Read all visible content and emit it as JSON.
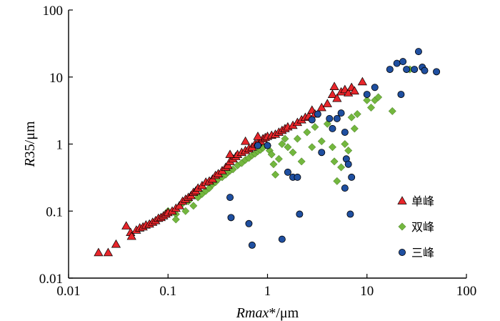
{
  "chart_data": {
    "type": "scatter",
    "xscale": "log",
    "yscale": "log",
    "xlim": [
      0.01,
      100
    ],
    "ylim": [
      0.01,
      100
    ],
    "x_ticks": [
      "0.01",
      "0.1",
      "1",
      "10",
      "100"
    ],
    "y_ticks": [
      "0.01",
      "0.1",
      "1",
      "10",
      "100"
    ],
    "xlabel": {
      "italic": "Rmax",
      "rest": "*/μm"
    },
    "ylabel": {
      "italic": "R",
      "rest": "35/μm"
    },
    "grid": false,
    "legend_position": "right",
    "series": [
      {
        "name": "单峰",
        "marker": "triangle",
        "color": "#e8262b",
        "points": [
          [
            0.02,
            0.024
          ],
          [
            0.025,
            0.024
          ],
          [
            0.03,
            0.032
          ],
          [
            0.038,
            0.06
          ],
          [
            0.042,
            0.048
          ],
          [
            0.043,
            0.042
          ],
          [
            0.048,
            0.052
          ],
          [
            0.052,
            0.056
          ],
          [
            0.056,
            0.058
          ],
          [
            0.06,
            0.062
          ],
          [
            0.065,
            0.064
          ],
          [
            0.07,
            0.068
          ],
          [
            0.075,
            0.072
          ],
          [
            0.08,
            0.078
          ],
          [
            0.085,
            0.08
          ],
          [
            0.09,
            0.085
          ],
          [
            0.095,
            0.09
          ],
          [
            0.1,
            0.095
          ],
          [
            0.11,
            0.1
          ],
          [
            0.12,
            0.11
          ],
          [
            0.13,
            0.12
          ],
          [
            0.14,
            0.14
          ],
          [
            0.15,
            0.15
          ],
          [
            0.16,
            0.16
          ],
          [
            0.17,
            0.17
          ],
          [
            0.18,
            0.19
          ],
          [
            0.19,
            0.2
          ],
          [
            0.2,
            0.22
          ],
          [
            0.22,
            0.24
          ],
          [
            0.24,
            0.27
          ],
          [
            0.26,
            0.28
          ],
          [
            0.28,
            0.3
          ],
          [
            0.3,
            0.34
          ],
          [
            0.32,
            0.36
          ],
          [
            0.35,
            0.4
          ],
          [
            0.38,
            0.45
          ],
          [
            0.4,
            0.48
          ],
          [
            0.42,
            0.55
          ],
          [
            0.45,
            0.6
          ],
          [
            0.48,
            0.65
          ],
          [
            0.5,
            0.7
          ],
          [
            0.55,
            0.75
          ],
          [
            0.6,
            0.8
          ],
          [
            0.65,
            0.85
          ],
          [
            0.7,
            0.9
          ],
          [
            0.75,
            1.0
          ],
          [
            0.8,
            1.05
          ],
          [
            0.85,
            1.1
          ],
          [
            0.9,
            1.2
          ],
          [
            0.95,
            1.25
          ],
          [
            1.0,
            1.3
          ],
          [
            1.1,
            1.35
          ],
          [
            1.2,
            1.4
          ],
          [
            1.3,
            1.5
          ],
          [
            1.4,
            1.6
          ],
          [
            1.5,
            1.7
          ],
          [
            1.6,
            1.8
          ],
          [
            1.8,
            1.9
          ],
          [
            2.0,
            2.1
          ],
          [
            2.2,
            2.3
          ],
          [
            2.4,
            2.5
          ],
          [
            2.6,
            2.6
          ],
          [
            2.8,
            3.2
          ],
          [
            3.0,
            2.8
          ],
          [
            3.5,
            3.5
          ],
          [
            4.0,
            4.0
          ],
          [
            4.5,
            5.5
          ],
          [
            4.7,
            7.2
          ],
          [
            5.0,
            4.8
          ],
          [
            5.5,
            6.0
          ],
          [
            6.0,
            6.5
          ],
          [
            6.5,
            5.8
          ],
          [
            7.0,
            7.0
          ],
          [
            7.5,
            6.2
          ],
          [
            9.0,
            8.5
          ],
          [
            0.42,
            0.7
          ],
          [
            0.6,
            1.1
          ],
          [
            0.8,
            1.3
          ]
        ]
      },
      {
        "name": "双峰",
        "marker": "diamond",
        "color": "#73b73e",
        "points": [
          [
            0.1,
            0.1
          ],
          [
            0.12,
            0.09
          ],
          [
            0.12,
            0.075
          ],
          [
            0.14,
            0.13
          ],
          [
            0.15,
            0.1
          ],
          [
            0.16,
            0.14
          ],
          [
            0.18,
            0.12
          ],
          [
            0.2,
            0.16
          ],
          [
            0.22,
            0.18
          ],
          [
            0.24,
            0.2
          ],
          [
            0.26,
            0.22
          ],
          [
            0.28,
            0.25
          ],
          [
            0.3,
            0.27
          ],
          [
            0.32,
            0.3
          ],
          [
            0.35,
            0.32
          ],
          [
            0.38,
            0.35
          ],
          [
            0.4,
            0.38
          ],
          [
            0.42,
            0.4
          ],
          [
            0.45,
            0.42
          ],
          [
            0.5,
            0.48
          ],
          [
            0.55,
            0.52
          ],
          [
            0.6,
            0.58
          ],
          [
            0.65,
            0.62
          ],
          [
            0.7,
            0.68
          ],
          [
            0.75,
            0.72
          ],
          [
            0.8,
            0.78
          ],
          [
            0.85,
            0.82
          ],
          [
            0.9,
            0.88
          ],
          [
            1.0,
            0.95
          ],
          [
            1.05,
            0.8
          ],
          [
            1.1,
            0.7
          ],
          [
            1.15,
            0.5
          ],
          [
            1.2,
            0.35
          ],
          [
            1.3,
            0.6
          ],
          [
            1.4,
            1.0
          ],
          [
            1.5,
            1.2
          ],
          [
            1.6,
            0.9
          ],
          [
            1.8,
            0.75
          ],
          [
            2.0,
            1.2
          ],
          [
            2.2,
            0.55
          ],
          [
            2.5,
            1.5
          ],
          [
            2.8,
            0.9
          ],
          [
            3.0,
            1.8
          ],
          [
            3.5,
            1.1
          ],
          [
            4.0,
            2.0
          ],
          [
            4.5,
            0.9
          ],
          [
            4.7,
            0.55
          ],
          [
            5.0,
            0.28
          ],
          [
            5.5,
            0.45
          ],
          [
            6.0,
            1.0
          ],
          [
            6.5,
            0.8
          ],
          [
            7.0,
            2.5
          ],
          [
            7.5,
            1.7
          ],
          [
            8.0,
            2.8
          ],
          [
            10.0,
            4.5
          ],
          [
            11.0,
            3.5
          ],
          [
            12.0,
            4.5
          ],
          [
            13.0,
            5.0
          ],
          [
            18.0,
            3.1
          ],
          [
            27.0,
            13.0
          ]
        ]
      },
      {
        "name": "三峰",
        "marker": "circle",
        "color": "#1f4fa0",
        "points": [
          [
            0.42,
            0.16
          ],
          [
            0.43,
            0.08
          ],
          [
            0.65,
            0.065
          ],
          [
            0.7,
            0.031
          ],
          [
            0.8,
            0.95
          ],
          [
            1.4,
            0.038
          ],
          [
            1.6,
            0.38
          ],
          [
            1.8,
            0.32
          ],
          [
            2.0,
            0.32
          ],
          [
            2.1,
            0.09
          ],
          [
            3.5,
            0.75
          ],
          [
            4.5,
            1.7
          ],
          [
            5.5,
            2.9
          ],
          [
            6.0,
            0.22
          ],
          [
            6.2,
            0.6
          ],
          [
            6.5,
            0.5
          ],
          [
            6.8,
            0.09
          ],
          [
            7.0,
            0.32
          ],
          [
            6.0,
            1.5
          ],
          [
            10.0,
            5.5
          ],
          [
            12.0,
            7.0
          ],
          [
            17.0,
            13.0
          ],
          [
            20.0,
            16.0
          ],
          [
            22.0,
            5.5
          ],
          [
            23.0,
            17.0
          ],
          [
            25.0,
            13.0
          ],
          [
            30.0,
            13.0
          ],
          [
            33.0,
            24.0
          ],
          [
            36.0,
            14.0
          ],
          [
            38.0,
            12.5
          ],
          [
            50.0,
            12.0
          ],
          [
            1.0,
            0.95
          ],
          [
            2.8,
            2.3
          ],
          [
            3.2,
            2.8
          ],
          [
            4.2,
            2.4
          ],
          [
            5.0,
            2.4
          ]
        ]
      }
    ]
  }
}
